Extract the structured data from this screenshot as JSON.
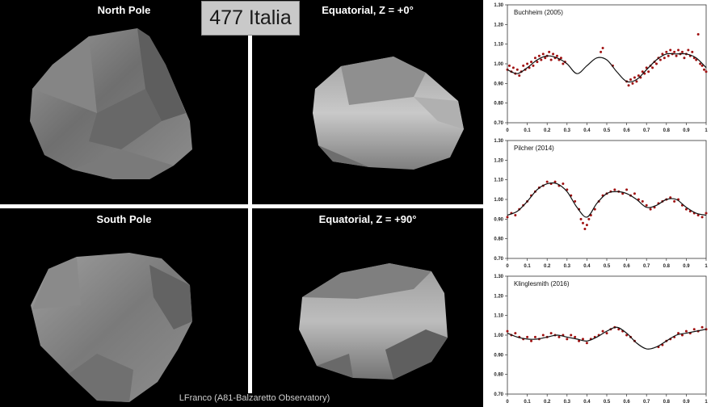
{
  "main_title": "477 Italia",
  "credit": "LFranco (A81-Balzaretto Observatory)",
  "views": [
    {
      "label": "North Pole"
    },
    {
      "label": "Equatorial, Z = +0°"
    },
    {
      "label": "South Pole"
    },
    {
      "label": "Equatorial, Z = +90°"
    }
  ],
  "chart_data": [
    {
      "type": "scatter",
      "title": "Buchheim (2005)",
      "xlim": [
        0,
        1
      ],
      "ylim": [
        0.7,
        1.3
      ],
      "xticks": [
        "0",
        "0.1",
        "0.2",
        "0.3",
        "0.4",
        "0.5",
        "0.6",
        "0.7",
        "0.8",
        "0.9",
        "1"
      ],
      "yticks": [
        "0.70",
        "0.80",
        "0.90",
        "1.00",
        "1.10",
        "1.20",
        "1.30"
      ],
      "model_line": {
        "x": [
          0,
          0.05,
          0.1,
          0.15,
          0.2,
          0.25,
          0.3,
          0.35,
          0.4,
          0.45,
          0.5,
          0.55,
          0.6,
          0.65,
          0.7,
          0.75,
          0.8,
          0.85,
          0.9,
          0.95,
          1.0
        ],
        "y": [
          0.97,
          0.95,
          0.98,
          1.02,
          1.04,
          1.03,
          1.0,
          0.95,
          0.99,
          1.03,
          1.02,
          0.96,
          0.91,
          0.92,
          0.97,
          1.02,
          1.05,
          1.05,
          1.05,
          1.03,
          0.98
        ]
      },
      "observations": {
        "x": [
          0.0,
          0.01,
          0.02,
          0.03,
          0.04,
          0.05,
          0.06,
          0.07,
          0.08,
          0.09,
          0.1,
          0.11,
          0.12,
          0.13,
          0.14,
          0.15,
          0.16,
          0.17,
          0.18,
          0.19,
          0.2,
          0.21,
          0.22,
          0.23,
          0.24,
          0.25,
          0.26,
          0.27,
          0.28,
          0.29,
          0.47,
          0.48,
          0.53,
          0.6,
          0.61,
          0.62,
          0.63,
          0.64,
          0.65,
          0.66,
          0.67,
          0.68,
          0.69,
          0.7,
          0.71,
          0.72,
          0.73,
          0.74,
          0.75,
          0.76,
          0.77,
          0.78,
          0.79,
          0.8,
          0.81,
          0.82,
          0.83,
          0.84,
          0.85,
          0.86,
          0.87,
          0.88,
          0.89,
          0.9,
          0.91,
          0.92,
          0.93,
          0.94,
          0.95,
          0.96,
          0.97,
          0.98,
          0.99,
          1.0
        ],
        "y": [
          0.97,
          0.99,
          0.96,
          0.98,
          0.95,
          0.97,
          0.94,
          0.96,
          0.99,
          0.97,
          1.0,
          0.98,
          1.01,
          0.99,
          1.03,
          1.01,
          1.04,
          1.02,
          1.05,
          1.03,
          1.04,
          1.06,
          1.02,
          1.05,
          1.03,
          1.04,
          1.02,
          1.03,
          1.0,
          1.01,
          1.06,
          1.08,
          0.99,
          0.91,
          0.89,
          0.92,
          0.9,
          0.93,
          0.91,
          0.94,
          0.93,
          0.96,
          0.95,
          0.98,
          0.96,
          0.99,
          0.98,
          1.01,
          1.0,
          1.03,
          1.02,
          1.05,
          1.03,
          1.06,
          1.04,
          1.07,
          1.05,
          1.06,
          1.04,
          1.07,
          1.05,
          1.06,
          1.03,
          1.05,
          1.07,
          1.04,
          1.06,
          1.03,
          1.02,
          1.15,
          1.0,
          0.99,
          0.97,
          0.96
        ]
      }
    },
    {
      "type": "scatter",
      "title": "Pilcher (2014)",
      "xlim": [
        0,
        1
      ],
      "ylim": [
        0.7,
        1.3
      ],
      "xticks": [
        "0",
        "0.1",
        "0.2",
        "0.3",
        "0.4",
        "0.5",
        "0.6",
        "0.7",
        "0.8",
        "0.9",
        "1"
      ],
      "yticks": [
        "0.70",
        "0.80",
        "0.90",
        "1.00",
        "1.10",
        "1.20",
        "1.30"
      ],
      "model_line": {
        "x": [
          0,
          0.05,
          0.1,
          0.15,
          0.2,
          0.25,
          0.3,
          0.35,
          0.4,
          0.45,
          0.5,
          0.55,
          0.6,
          0.65,
          0.7,
          0.75,
          0.8,
          0.85,
          0.9,
          0.95,
          1.0
        ],
        "y": [
          0.92,
          0.94,
          0.99,
          1.05,
          1.08,
          1.08,
          1.04,
          0.96,
          0.91,
          0.98,
          1.03,
          1.04,
          1.03,
          1.0,
          0.96,
          0.97,
          1.0,
          1.0,
          0.96,
          0.93,
          0.92
        ]
      },
      "observations": {
        "x": [
          0.0,
          0.02,
          0.04,
          0.06,
          0.08,
          0.1,
          0.12,
          0.14,
          0.16,
          0.18,
          0.2,
          0.22,
          0.24,
          0.26,
          0.28,
          0.3,
          0.32,
          0.34,
          0.36,
          0.37,
          0.38,
          0.39,
          0.4,
          0.41,
          0.42,
          0.44,
          0.46,
          0.48,
          0.5,
          0.52,
          0.54,
          0.56,
          0.58,
          0.6,
          0.62,
          0.64,
          0.66,
          0.68,
          0.7,
          0.72,
          0.74,
          0.76,
          0.78,
          0.8,
          0.82,
          0.84,
          0.86,
          0.88,
          0.9,
          0.92,
          0.94,
          0.96,
          0.98,
          1.0
        ],
        "y": [
          0.91,
          0.93,
          0.92,
          0.95,
          0.97,
          0.99,
          1.02,
          1.04,
          1.06,
          1.07,
          1.09,
          1.08,
          1.09,
          1.07,
          1.08,
          1.05,
          1.02,
          0.99,
          0.95,
          0.9,
          0.88,
          0.85,
          0.87,
          0.9,
          0.92,
          0.95,
          0.99,
          1.02,
          1.03,
          1.04,
          1.05,
          1.04,
          1.03,
          1.05,
          1.02,
          1.03,
          1.0,
          0.99,
          0.97,
          0.95,
          0.96,
          0.98,
          0.99,
          1.0,
          1.01,
          0.99,
          1.0,
          0.97,
          0.95,
          0.94,
          0.93,
          0.92,
          0.91,
          0.93
        ]
      }
    },
    {
      "type": "scatter",
      "title": "Klinglesmith (2016)",
      "xlim": [
        0,
        1
      ],
      "ylim": [
        0.7,
        1.3
      ],
      "xticks": [
        "0",
        "0.1",
        "0.2",
        "0.3",
        "0.4",
        "0.5",
        "0.6",
        "0.7",
        "0.8",
        "0.9",
        "1"
      ],
      "yticks": [
        "0.70",
        "0.80",
        "0.90",
        "1.00",
        "1.10",
        "1.20",
        "1.30"
      ],
      "model_line": {
        "x": [
          0,
          0.05,
          0.1,
          0.15,
          0.2,
          0.25,
          0.3,
          0.35,
          0.4,
          0.45,
          0.5,
          0.55,
          0.6,
          0.65,
          0.7,
          0.75,
          0.8,
          0.85,
          0.9,
          0.95,
          1.0
        ],
        "y": [
          1.01,
          0.99,
          0.98,
          0.98,
          0.99,
          1.0,
          0.99,
          0.98,
          0.97,
          0.99,
          1.02,
          1.04,
          1.01,
          0.96,
          0.93,
          0.94,
          0.97,
          1.0,
          1.01,
          1.02,
          1.03
        ]
      },
      "observations": {
        "x": [
          0.0,
          0.02,
          0.04,
          0.06,
          0.08,
          0.1,
          0.12,
          0.14,
          0.16,
          0.18,
          0.2,
          0.22,
          0.24,
          0.26,
          0.28,
          0.3,
          0.32,
          0.34,
          0.36,
          0.38,
          0.4,
          0.42,
          0.44,
          0.46,
          0.48,
          0.5,
          0.52,
          0.54,
          0.56,
          0.58,
          0.6,
          0.62,
          0.64,
          0.76,
          0.78,
          0.8,
          0.82,
          0.84,
          0.86,
          0.88,
          0.9,
          0.92,
          0.94,
          0.96,
          0.98,
          1.0
        ],
        "y": [
          1.02,
          1.0,
          1.01,
          0.99,
          0.98,
          0.99,
          0.97,
          0.99,
          0.98,
          1.0,
          0.99,
          1.01,
          1.0,
          0.99,
          1.0,
          0.98,
          1.0,
          0.99,
          0.97,
          0.98,
          0.96,
          0.98,
          0.99,
          1.0,
          1.02,
          1.01,
          1.03,
          1.04,
          1.03,
          1.02,
          1.0,
          0.99,
          0.97,
          0.94,
          0.95,
          0.97,
          0.98,
          0.99,
          1.01,
          1.0,
          1.02,
          1.01,
          1.03,
          1.02,
          1.04,
          1.03
        ]
      }
    }
  ]
}
